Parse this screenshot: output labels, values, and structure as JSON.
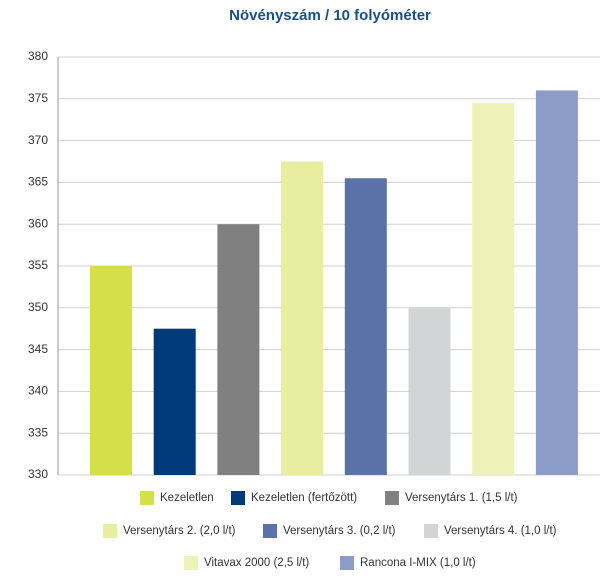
{
  "chart_data": {
    "type": "bar",
    "title": "Növényszám / 10 folyóméter",
    "categories": [
      "Kezeletlen",
      "Kezeletlen (fertőzött)",
      "Versenytárs 1. (1,5 l/t)",
      "Versenytárs 2. (2,0 l/t)",
      "Versenytárs 3. (0,2 l/t)",
      "Versenytárs 4. (1,0 l/t)",
      "Vitavax 2000 (2,5 l/t)",
      "Rancona I-MIX (1,0 l/t)"
    ],
    "values": [
      355,
      347.5,
      360,
      367.5,
      365.5,
      350,
      374.5,
      376
    ],
    "colors": [
      "#d4df4a",
      "#003a7a",
      "#808080",
      "#e8eda0",
      "#5a72a8",
      "#d3d4d6",
      "#eef2b8",
      "#8b9cc8"
    ],
    "ylim": [
      330,
      380
    ],
    "yticks": [
      330,
      335,
      340,
      345,
      350,
      355,
      360,
      365,
      370,
      375,
      380
    ],
    "grid": true
  }
}
